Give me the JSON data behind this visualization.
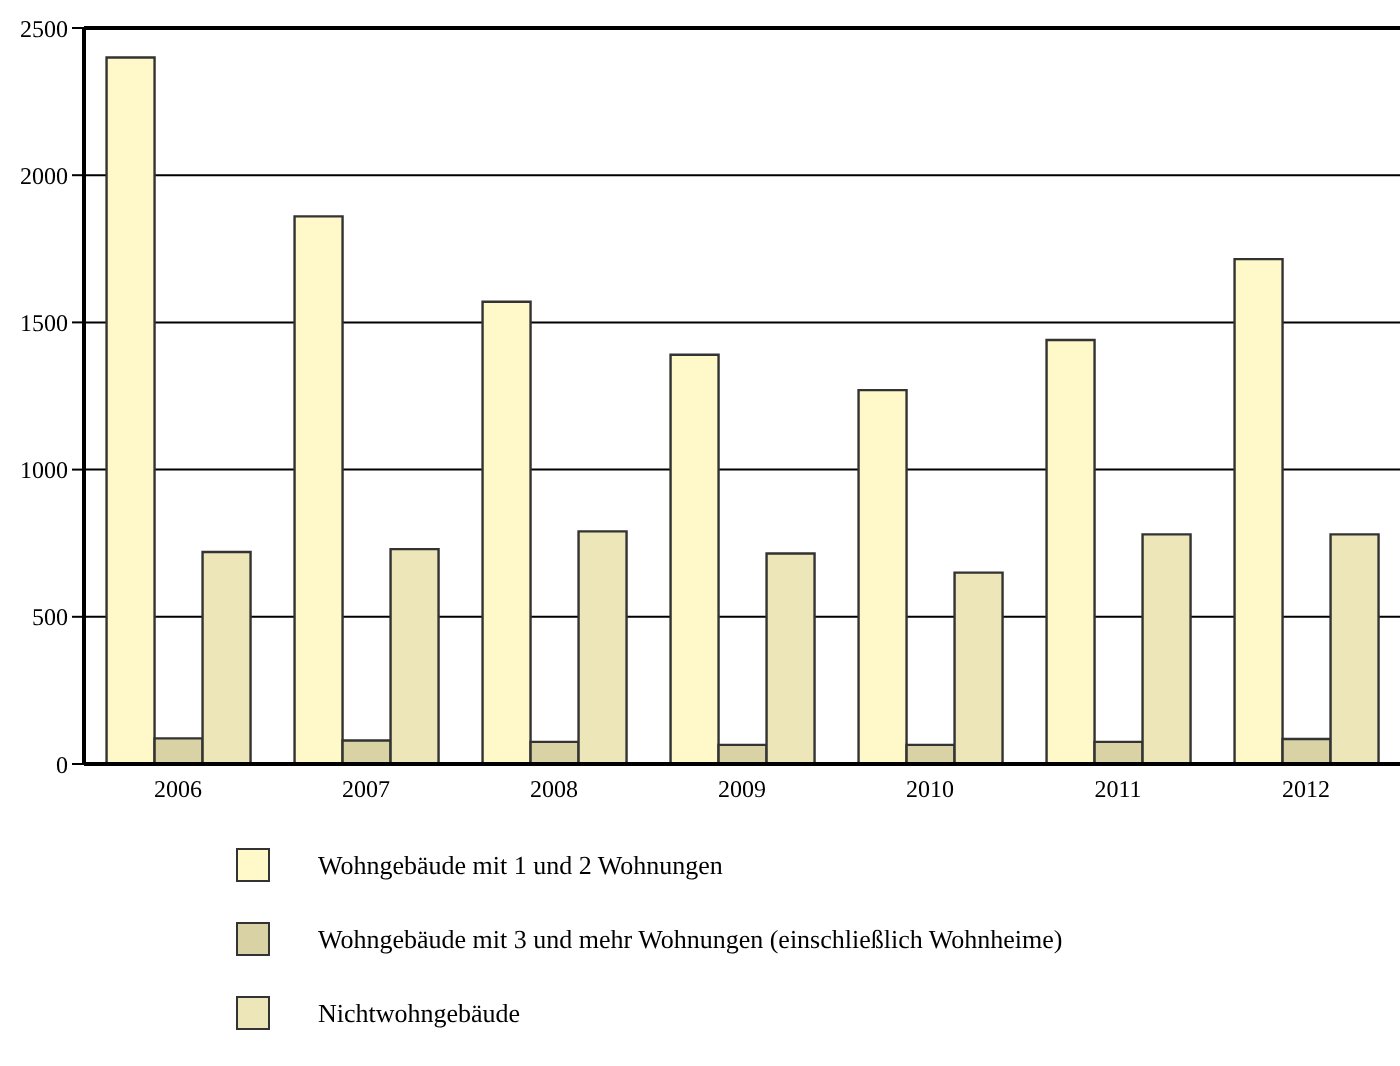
{
  "chart_data": {
    "type": "bar",
    "categories": [
      "2006",
      "2007",
      "2008",
      "2009",
      "2010",
      "2011",
      "2012"
    ],
    "series": [
      {
        "name": "Wohngebäude mit 1 und 2 Wohnungen",
        "color": "#fff8c8",
        "values": [
          2400,
          1860,
          1570,
          1390,
          1270,
          1440,
          1715
        ]
      },
      {
        "name": "Wohngebäude mit 3 und mehr Wohnungen (einschließlich Wohnheime)",
        "color": "#d8d2a4",
        "values": [
          87,
          80,
          75,
          65,
          65,
          75,
          85
        ]
      },
      {
        "name": "Nichtwohngebäude",
        "color": "#ede6b8",
        "values": [
          720,
          730,
          790,
          715,
          650,
          780,
          780
        ]
      }
    ],
    "ylim": [
      0,
      2500
    ],
    "yticks": [
      0,
      500,
      1000,
      1500,
      2000,
      2500
    ],
    "grid": "y",
    "legend": "bottom"
  }
}
